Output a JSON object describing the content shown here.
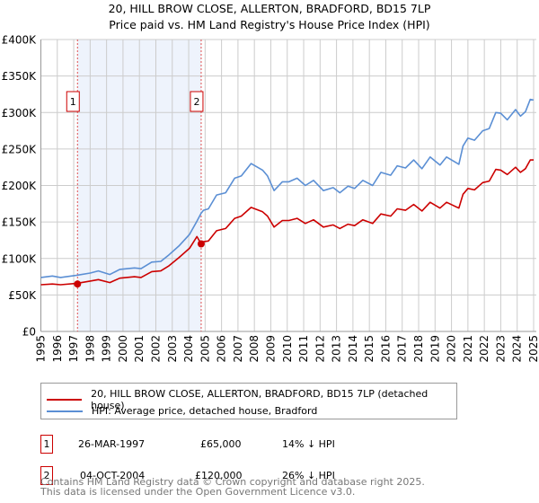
{
  "chart_data": {
    "type": "line",
    "title": "20, HILL BROW CLOSE, ALLERTON, BRADFORD, BD15 7LP",
    "subtitle": "Price paid vs. HM Land Registry's House Price Index (HPI)",
    "xlim": [
      1995,
      2025.1
    ],
    "ylim": [
      0,
      400000
    ],
    "y_ticks": [
      {
        "v": 0,
        "label": "£0"
      },
      {
        "v": 50000,
        "label": "£50K"
      },
      {
        "v": 100000,
        "label": "£100K"
      },
      {
        "v": 150000,
        "label": "£150K"
      },
      {
        "v": 200000,
        "label": "£200K"
      },
      {
        "v": 250000,
        "label": "£250K"
      },
      {
        "v": 300000,
        "label": "£300K"
      },
      {
        "v": 350000,
        "label": "£350K"
      },
      {
        "v": 400000,
        "label": "£400K"
      }
    ],
    "x_ticks": [
      "1995",
      "1996",
      "1997",
      "1998",
      "1999",
      "2000",
      "2001",
      "2002",
      "2003",
      "2004",
      "2005",
      "2006",
      "2007",
      "2008",
      "2009",
      "2010",
      "2011",
      "2012",
      "2013",
      "2014",
      "2015",
      "2016",
      "2017",
      "2018",
      "2019",
      "2020",
      "2021",
      "2022",
      "2023",
      "2024",
      "2025"
    ],
    "grid": true,
    "x": [
      1995,
      1995.7,
      1996.2,
      1997.2,
      1998,
      1998.5,
      1999.2,
      1999.8,
      2000.7,
      2001.1,
      2001.75,
      2002.3,
      2002.8,
      2003.4,
      2004.05,
      2004.5,
      2004.76,
      2004.9,
      2005.2,
      2005.7,
      2006.25,
      2006.8,
      2007.2,
      2007.8,
      2008.5,
      2008.8,
      2009.2,
      2009.7,
      2010.1,
      2010.6,
      2011.1,
      2011.6,
      2012.2,
      2012.8,
      2013.2,
      2013.7,
      2014.1,
      2014.6,
      2015.2,
      2015.7,
      2016.3,
      2016.7,
      2017.2,
      2017.7,
      2018.2,
      2018.7,
      2019.3,
      2019.7,
      2020.45,
      2020.7,
      2021.0,
      2021.4,
      2021.9,
      2022.3,
      2022.7,
      2023.0,
      2023.4,
      2023.9,
      2024.2,
      2024.5,
      2024.8,
      2025.0
    ],
    "series": [
      {
        "name": "20, HILL BROW CLOSE, ALLERTON, BRADFORD, BD15 7LP (detached house)",
        "color": "#cc0000",
        "values": [
          64000,
          65000,
          64000,
          66000,
          69000,
          71000,
          67000,
          73000,
          75000,
          74000,
          82000,
          83000,
          90000,
          101000,
          114000,
          130000,
          120000,
          123000,
          124000,
          138000,
          141000,
          155000,
          158000,
          170000,
          164000,
          158000,
          143000,
          152000,
          152000,
          155000,
          148000,
          153000,
          143000,
          146000,
          141000,
          147000,
          145000,
          153000,
          148000,
          161000,
          158000,
          168000,
          166000,
          174000,
          165000,
          177000,
          169000,
          177000,
          169000,
          188000,
          196000,
          194000,
          204000,
          206000,
          222000,
          221000,
          215000,
          225000,
          218000,
          223000,
          235000,
          235000
        ]
      },
      {
        "name": "HPI: Average price, detached house, Bradford",
        "color": "#5b8fd4",
        "values": [
          74000,
          76000,
          74000,
          77000,
          80000,
          83000,
          78000,
          85000,
          87000,
          86000,
          95000,
          96000,
          105000,
          117000,
          133000,
          151000,
          162000,
          166000,
          168000,
          187000,
          190000,
          210000,
          213000,
          230000,
          221000,
          213000,
          193000,
          205000,
          205000,
          210000,
          200000,
          207000,
          193000,
          197000,
          190000,
          199000,
          196000,
          207000,
          200000,
          218000,
          214000,
          227000,
          224000,
          235000,
          223000,
          239000,
          228000,
          239000,
          229000,
          254000,
          265000,
          262000,
          275000,
          278000,
          300000,
          299000,
          290000,
          304000,
          295000,
          301000,
          318000,
          317000
        ]
      }
    ],
    "sales": [
      {
        "id": "1",
        "x": 1997.23,
        "value": 65000,
        "date": "26-MAR-1997",
        "price": "£65,000",
        "hpi": "14% ↓ HPI"
      },
      {
        "id": "2",
        "x": 2004.76,
        "value": 120000,
        "date": "04-OCT-2004",
        "price": "£120,000",
        "hpi": "26% ↓ HPI"
      }
    ],
    "shade_color": "#eef3fc"
  },
  "footer": {
    "line1": "Contains HM Land Registry data © Crown copyright and database right 2025.",
    "line2": "This data is licensed under the Open Government Licence v3.0."
  }
}
